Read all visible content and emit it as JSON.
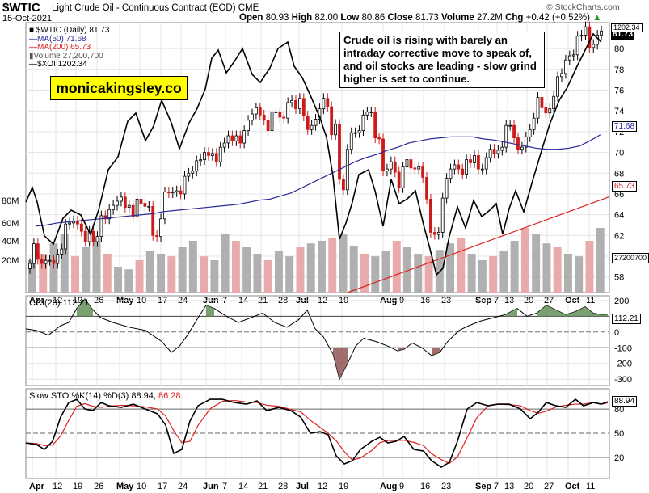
{
  "header": {
    "symbol": "$WTIC",
    "title": "Light Crude Oil - Continuous Contract (EOD)",
    "exchange": "CME",
    "date": "15-Oct-2021",
    "open_label": "Open",
    "open": "80.93",
    "high_label": "High",
    "high": "82.00",
    "low_label": "Low",
    "low": "80.86",
    "close_label": "Close",
    "close": "81.73",
    "volume_label": "Volume",
    "volume": "27.2M",
    "chg_label": "Chg",
    "chg": "+0.42 (+0.52%)",
    "brand": "© StockCharts.com"
  },
  "legend": {
    "l1": "$WTIC (Daily) 81.73",
    "l2": "MA(50) 71.68",
    "l3": "MA(200) 65.73",
    "l4": "Volume 27,200,700",
    "l5": "$XOI 1202.34"
  },
  "watermark": "monicakingsley.co",
  "note": "Crude oil is rising with barely an intraday corrective move to speak of, and oil stocks are leading - slow grind higher is set to continue.",
  "colors": {
    "up": "#000000",
    "down": "#cc1a1a",
    "ma50": "#2a2a9a",
    "ma200": "#dd2222",
    "xoi": "#000000",
    "volUp": "#b0b0b0",
    "volDown": "#e8aaaa",
    "cciPos": "#5a8a50",
    "cciNeg": "#8a4a4a",
    "stoK": "#000000",
    "stoD": "#dd2222"
  },
  "indicators": {
    "cci_label": "CCI(20) 112.21",
    "cci_value": "112.21",
    "sto_label_a": "Slow STO %K(14) %D(3) 88.94,",
    "sto_label_b": "86.28",
    "sto_value": "88.94"
  },
  "price_boxes": {
    "last": "81.73",
    "top": "1202.34",
    "ma50": "71.68",
    "ma200": "65.73",
    "vol": "27200700"
  },
  "chart_data": [
    {
      "type": "candlestick",
      "title": "Light Crude Oil - Continuous Contract (EOD)",
      "y_axis_right": [
        58,
        60,
        62,
        64,
        66,
        68,
        70,
        72,
        74,
        76,
        78,
        80
      ],
      "ylim": [
        56.5,
        82.5
      ],
      "volume_axis_left": [
        "20M",
        "40M",
        "60M",
        "80M"
      ],
      "x_tick_labels": [
        "Apr",
        "12",
        "19",
        "26",
        "May",
        "10",
        "17",
        "24",
        "Jun",
        "7",
        "14",
        "21",
        "28",
        "Jul",
        "12",
        "19",
        "Aug",
        "9",
        "16",
        "23",
        "Sep",
        "7",
        "13",
        "20",
        "27",
        "Oct",
        "11"
      ],
      "closes": [
        59.3,
        61.2,
        59.7,
        59.3,
        59.6,
        59.6,
        59.3,
        60.2,
        60.7,
        63.1,
        63.2,
        63.4,
        63.1,
        62.4,
        61.4,
        62.4,
        61.4,
        61.9,
        63.9,
        63.6,
        64.5,
        64.9,
        65.3,
        65.7,
        64.7,
        64.9,
        63.8,
        65.5,
        65.1,
        64.8,
        64.8,
        62.0,
        61.9,
        63.6,
        66.2,
        66.1,
        66.2,
        66.3,
        66.0,
        67.7,
        68.0,
        68.2,
        69.2,
        69.3,
        70.0,
        69.7,
        69.9,
        69.1,
        70.5,
        70.9,
        71.6,
        71.1,
        71.6,
        70.9,
        72.1,
        73.1,
        73.7,
        74.3,
        73.6,
        73.1,
        72.1,
        73.9,
        73.9,
        73.4,
        73.3,
        74.8,
        75.0,
        74.2,
        75.2,
        73.5,
        72.2,
        72.6,
        73.2,
        74.2,
        75.2,
        74.4,
        71.7,
        72.7,
        67.4,
        66.4,
        70.3,
        71.9,
        71.9,
        72.1,
        73.6,
        73.9,
        73.9,
        71.4,
        71.3,
        68.2,
        68.4,
        69.1,
        68.1,
        66.6,
        68.6,
        69.3,
        68.5,
        68.4,
        68.6,
        67.6,
        65.5,
        62.3,
        62.1,
        62.3,
        65.6,
        67.5,
        68.4,
        68.8,
        68.4,
        67.9,
        69.3,
        69.0,
        69.7,
        68.4,
        68.4,
        69.5,
        70.3,
        69.9,
        70.2,
        70.5,
        72.6,
        72.6,
        71.4,
        70.3,
        70.5,
        71.5,
        72.2,
        73.3,
        75.3,
        74.3,
        73.8,
        74.2,
        75.4,
        77.3,
        77.6,
        78.9,
        79.3,
        79.4,
        81.2,
        81.3,
        82.1,
        80.1,
        80.4,
        81.3,
        81.7
      ],
      "ma50": [
        62.9,
        63.0,
        63.2,
        63.3,
        63.4,
        63.5,
        63.6,
        63.7,
        63.8,
        63.9,
        64.0,
        64.1,
        64.3,
        64.4,
        64.5,
        64.6,
        64.7,
        64.8,
        64.9,
        65.0,
        65.2,
        65.4,
        65.5,
        65.8,
        66.1,
        66.6,
        67.1,
        67.6,
        68.1,
        68.6,
        69.1,
        69.5,
        69.8,
        70.2,
        70.5,
        70.9,
        71.1,
        71.3,
        71.4,
        71.5,
        71.5,
        71.5,
        71.3,
        71.2,
        71.0,
        70.8,
        70.6,
        70.4,
        70.3,
        70.3,
        70.4,
        70.6,
        71.1,
        71.7
      ],
      "ma200_range": [
        56.5,
        65.73
      ],
      "xoi_right_axis_value": "1202.34",
      "volume_millions": [
        25,
        30,
        38,
        45,
        28,
        35,
        42,
        30,
        20,
        18,
        25,
        32,
        30,
        28,
        35,
        40,
        28,
        25,
        45,
        40,
        35,
        30,
        25,
        32,
        28,
        35,
        38,
        40,
        42,
        45,
        36,
        30,
        28,
        32,
        40,
        35,
        30,
        28,
        33,
        38,
        42,
        30,
        25,
        28,
        32,
        40,
        50,
        45,
        38,
        35,
        30,
        28,
        40,
        50
      ]
    },
    {
      "type": "line",
      "title": "CCI(20) 112.21",
      "y_axis_right": [
        -300,
        -200,
        -100,
        0,
        100,
        200
      ],
      "ylim": [
        -340,
        230
      ],
      "last": 112.21
    },
    {
      "type": "line",
      "title": "Slow STO %K(14) %D(3) 88.94, 86.28",
      "y_axis_right": [
        20,
        50,
        80
      ],
      "ylim": [
        0,
        100
      ],
      "k_last": 88.94,
      "d_last": 86.28
    }
  ]
}
